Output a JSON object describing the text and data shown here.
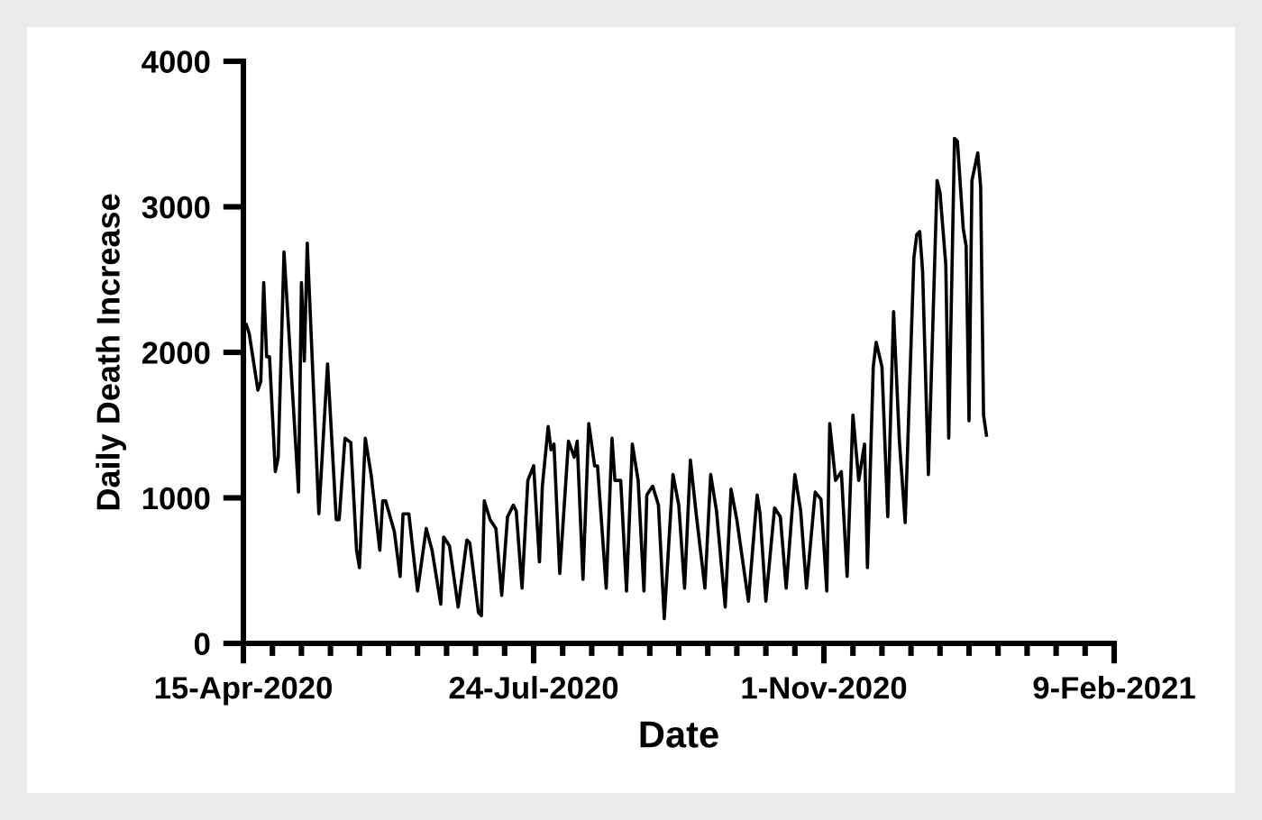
{
  "chart_data": {
    "type": "line",
    "xlabel": "Date",
    "ylabel": "Daily Death Increase",
    "x": [
      "2020-04-16",
      "2020-04-17",
      "2020-04-20",
      "2020-04-21",
      "2020-04-22",
      "2020-04-23",
      "2020-04-24",
      "2020-04-26",
      "2020-04-27",
      "2020-04-29",
      "2020-05-04",
      "2020-05-05",
      "2020-05-06",
      "2020-05-07",
      "2020-05-11",
      "2020-05-14",
      "2020-05-17",
      "2020-05-18",
      "2020-05-20",
      "2020-05-22",
      "2020-05-24",
      "2020-05-25",
      "2020-05-27",
      "2020-05-29",
      "2020-06-01",
      "2020-06-02",
      "2020-06-03",
      "2020-06-06",
      "2020-06-08",
      "2020-06-09",
      "2020-06-11",
      "2020-06-14",
      "2020-06-17",
      "2020-06-19",
      "2020-06-22",
      "2020-06-23",
      "2020-06-25",
      "2020-06-28",
      "2020-07-01",
      "2020-07-02",
      "2020-07-05",
      "2020-07-06",
      "2020-07-07",
      "2020-07-09",
      "2020-07-11",
      "2020-07-13",
      "2020-07-15",
      "2020-07-17",
      "2020-07-18",
      "2020-07-20",
      "2020-07-22",
      "2020-07-24",
      "2020-07-26",
      "2020-07-27",
      "2020-07-29",
      "2020-07-30",
      "2020-07-31",
      "2020-08-02",
      "2020-08-05",
      "2020-08-07",
      "2020-08-08",
      "2020-08-10",
      "2020-08-12",
      "2020-08-14",
      "2020-08-15",
      "2020-08-18",
      "2020-08-20",
      "2020-08-21",
      "2020-08-23",
      "2020-08-25",
      "2020-08-27",
      "2020-08-29",
      "2020-08-31",
      "2020-09-01",
      "2020-09-03",
      "2020-09-05",
      "2020-09-07",
      "2020-09-10",
      "2020-09-12",
      "2020-09-14",
      "2020-09-16",
      "2020-09-18",
      "2020-09-21",
      "2020-09-23",
      "2020-09-25",
      "2020-09-28",
      "2020-09-30",
      "2020-10-02",
      "2020-10-06",
      "2020-10-09",
      "2020-10-10",
      "2020-10-12",
      "2020-10-15",
      "2020-10-17",
      "2020-10-19",
      "2020-10-22",
      "2020-10-24",
      "2020-10-26",
      "2020-10-29",
      "2020-10-31",
      "2020-11-02",
      "2020-11-03",
      "2020-11-05",
      "2020-11-07",
      "2020-11-09",
      "2020-11-11",
      "2020-11-13",
      "2020-11-15",
      "2020-11-16",
      "2020-11-18",
      "2020-11-19",
      "2020-11-21",
      "2020-11-23",
      "2020-11-25",
      "2020-11-27",
      "2020-11-29",
      "2020-12-02",
      "2020-12-03",
      "2020-12-04",
      "2020-12-05",
      "2020-12-07",
      "2020-12-10",
      "2020-12-11",
      "2020-12-13",
      "2020-12-14",
      "2020-12-16",
      "2020-12-17",
      "2020-12-19",
      "2020-12-20",
      "2020-12-21",
      "2020-12-22",
      "2020-12-24",
      "2020-12-25",
      "2020-12-26",
      "2020-12-27"
    ],
    "series": [
      {
        "color": "#000000",
        "values": [
          2190,
          2130,
          1740,
          1800,
          2480,
          1970,
          1970,
          1180,
          1280,
          2690,
          1040,
          2480,
          1940,
          2750,
          890,
          1920,
          850,
          850,
          1410,
          1380,
          640,
          520,
          1410,
          1160,
          640,
          980,
          980,
          770,
          460,
          890,
          890,
          360,
          790,
          640,
          270,
          730,
          670,
          250,
          710,
          690,
          210,
          190,
          980,
          850,
          790,
          330,
          870,
          950,
          910,
          380,
          1120,
          1220,
          560,
          1080,
          1490,
          1330,
          1370,
          480,
          1390,
          1280,
          1390,
          440,
          1510,
          1220,
          1220,
          380,
          1410,
          1120,
          1120,
          360,
          1370,
          1120,
          360,
          1020,
          1080,
          950,
          170,
          1160,
          950,
          380,
          1260,
          890,
          380,
          1160,
          910,
          250,
          1060,
          850,
          290,
          1020,
          890,
          290,
          930,
          870,
          380,
          1160,
          910,
          380,
          1040,
          990,
          360,
          1510,
          1120,
          1180,
          460,
          1570,
          1120,
          1370,
          520,
          1900,
          2070,
          1900,
          870,
          2280,
          1390,
          830,
          2650,
          2810,
          2830,
          2560,
          1160,
          3180,
          3100,
          2600,
          1410,
          3470,
          3450,
          2850,
          2730,
          1530,
          3180,
          3370,
          3140,
          1570,
          1430
        ]
      }
    ],
    "xlim": [
      "2020-04-15",
      "2021-02-09"
    ],
    "xticks": [
      {
        "value": "2020-04-15",
        "label": "15-Apr-2020"
      },
      {
        "value": "2020-04-25",
        "label": null
      },
      {
        "value": "2020-05-05",
        "label": null
      },
      {
        "value": "2020-05-15",
        "label": null
      },
      {
        "value": "2020-05-25",
        "label": null
      },
      {
        "value": "2020-06-04",
        "label": null
      },
      {
        "value": "2020-06-14",
        "label": null
      },
      {
        "value": "2020-06-24",
        "label": null
      },
      {
        "value": "2020-07-04",
        "label": null
      },
      {
        "value": "2020-07-14",
        "label": null
      },
      {
        "value": "2020-07-24",
        "label": "24-Jul-2020"
      },
      {
        "value": "2020-08-03",
        "label": null
      },
      {
        "value": "2020-08-13",
        "label": null
      },
      {
        "value": "2020-08-23",
        "label": null
      },
      {
        "value": "2020-09-02",
        "label": null
      },
      {
        "value": "2020-09-12",
        "label": null
      },
      {
        "value": "2020-09-22",
        "label": null
      },
      {
        "value": "2020-10-02",
        "label": null
      },
      {
        "value": "2020-10-12",
        "label": null
      },
      {
        "value": "2020-10-22",
        "label": null
      },
      {
        "value": "2020-11-01",
        "label": "1-Nov-2020"
      },
      {
        "value": "2020-11-11",
        "label": null
      },
      {
        "value": "2020-11-21",
        "label": null
      },
      {
        "value": "2020-12-01",
        "label": null
      },
      {
        "value": "2020-12-11",
        "label": null
      },
      {
        "value": "2020-12-21",
        "label": null
      },
      {
        "value": "2020-12-31",
        "label": null
      },
      {
        "value": "2021-01-10",
        "label": null
      },
      {
        "value": "2021-01-20",
        "label": null
      },
      {
        "value": "2021-01-30",
        "label": null
      },
      {
        "value": "2021-02-09",
        "label": "9-Feb-2021"
      }
    ],
    "ylim": [
      0,
      4000
    ],
    "yticks": [
      0,
      1000,
      2000,
      3000,
      4000
    ],
    "grid": false,
    "legend": false,
    "marker": "none",
    "line_style": "solid"
  }
}
